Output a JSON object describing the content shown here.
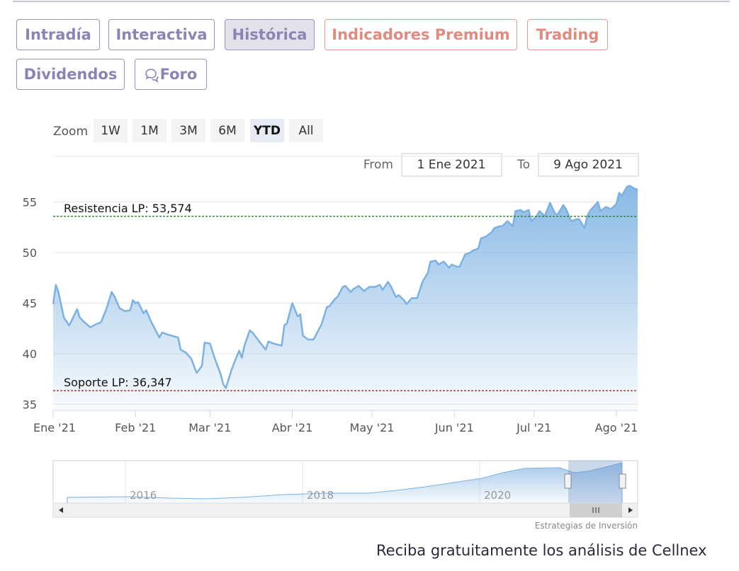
{
  "tabs": [
    "Intradía",
    "Interactiva",
    "Histórica",
    "Indicadores Premium",
    "Trading",
    "Dividendos",
    "Foro"
  ],
  "zoom": {
    "label": "Zoom",
    "buttons": [
      "1W",
      "1M",
      "3M",
      "6M",
      "YTD",
      "All"
    ]
  },
  "range": {
    "from_label": "From",
    "from": "1 Ene 2021",
    "to_label": "To",
    "to": "9 Ago 2021"
  },
  "chart_data": {
    "type": "area",
    "color": "#7cb1e2",
    "x": [
      0,
      1,
      2,
      4,
      6,
      7,
      9,
      10,
      11,
      14,
      16,
      18,
      20,
      22,
      23,
      25,
      27,
      29,
      30,
      31,
      32,
      34,
      35,
      37,
      38,
      40,
      41,
      43,
      47,
      48,
      50,
      52,
      54,
      56,
      57,
      59,
      61,
      63,
      64,
      65,
      67,
      68,
      70,
      71,
      72,
      74,
      75,
      77,
      80,
      81,
      83,
      86,
      87,
      88,
      90,
      92,
      93,
      94,
      96,
      98,
      100,
      101,
      103,
      104,
      106,
      107,
      109,
      110,
      112,
      113,
      115,
      117,
      119,
      121,
      123,
      124,
      126,
      127,
      129,
      130,
      132,
      133,
      135,
      137,
      138,
      139,
      141,
      142,
      144,
      145,
      147,
      149,
      150,
      152,
      153,
      155,
      157,
      158,
      160,
      161,
      163,
      165,
      166,
      168,
      169,
      171,
      173,
      174,
      176,
      177,
      179,
      180,
      182,
      183,
      185,
      187,
      189,
      190,
      192,
      193,
      195,
      197,
      198,
      200,
      201,
      202,
      205,
      206,
      208,
      210,
      212,
      213,
      214,
      216,
      217,
      219,
      220
    ],
    "values": [
      44.9,
      46.8,
      46.1,
      43.6,
      42.8,
      43.3,
      44.4,
      43.6,
      43.3,
      42.6,
      42.9,
      43.1,
      44.4,
      46.1,
      45.7,
      44.5,
      44.2,
      44.3,
      45.3,
      45.0,
      45.1,
      44.0,
      44.3,
      43.1,
      42.6,
      41.6,
      42.1,
      41.9,
      41.6,
      40.4,
      40.1,
      39.5,
      38.1,
      38.8,
      41.1,
      41.0,
      39.4,
      38.0,
      37.0,
      36.6,
      38.3,
      39.0,
      40.3,
      39.6,
      40.8,
      42.3,
      42.1,
      41.4,
      40.4,
      41.2,
      41.0,
      40.8,
      42.8,
      43.0,
      45.0,
      43.7,
      43.9,
      41.8,
      41.4,
      41.4,
      42.4,
      42.9,
      44.6,
      44.7,
      45.4,
      45.6,
      46.6,
      46.7,
      46.1,
      46.4,
      46.7,
      46.2,
      46.6,
      46.6,
      46.8,
      46.3,
      47.1,
      46.7,
      45.6,
      45.8,
      45.3,
      44.9,
      45.5,
      45.5,
      46.3,
      47.1,
      48.0,
      49.1,
      49.2,
      48.8,
      49.1,
      48.5,
      48.8,
      48.6,
      48.6,
      49.8,
      50.0,
      50.2,
      50.4,
      51.4,
      51.6,
      52.0,
      52.4,
      52.6,
      52.6,
      53.1,
      52.6,
      54.1,
      54.2,
      54.0,
      54.2,
      53.1,
      53.6,
      54.1,
      53.6,
      54.9,
      53.8,
      53.8,
      54.7,
      54.3,
      53.1,
      53.3,
      53.3,
      52.4,
      53.6,
      54.1,
      55.0,
      54.1,
      54.5,
      54.3,
      54.8,
      55.9,
      55.6,
      56.5,
      56.6,
      56.3,
      56.2
    ],
    "xlim": [
      0,
      220
    ],
    "xticks": [
      {
        "value": 0,
        "label": "Ene '21"
      },
      {
        "value": 31,
        "label": "Feb '21"
      },
      {
        "value": 59,
        "label": "Mar '21"
      },
      {
        "value": 90,
        "label": "Abr '21"
      },
      {
        "value": 120,
        "label": "May '21"
      },
      {
        "value": 151,
        "label": "Jun '21"
      },
      {
        "value": 181,
        "label": "Jul '21"
      },
      {
        "value": 212,
        "label": "Ago '21"
      }
    ],
    "ylim": [
      34.4,
      59.5
    ],
    "yticks": [
      35,
      40,
      45,
      50,
      55
    ],
    "grid": true,
    "plot_lines": [
      {
        "value": 53.574,
        "label": "Resistencia LP: 53,574",
        "color": "#1a7a1a"
      },
      {
        "value": 36.347,
        "label": "Soporte LP: 36,347",
        "color": "#8b1a1a"
      }
    ],
    "navigator_labels": [
      "2016",
      "2018",
      "2020"
    ],
    "credit": "Estrategias de Inversión"
  },
  "promo": "Reciba gratuitamente los análisis de Cellnex"
}
